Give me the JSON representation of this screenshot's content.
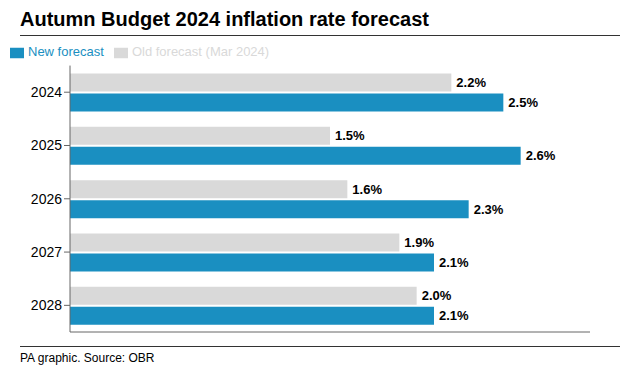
{
  "chart_data": {
    "type": "bar",
    "title": "Autumn Budget 2024 inflation rate forecast",
    "orientation": "horizontal",
    "categories": [
      "2024",
      "2025",
      "2026",
      "2027",
      "2028"
    ],
    "series": [
      {
        "name": "Old forecast (Mar 2024)",
        "color": "#d9d9d9",
        "values": [
          2.2,
          1.5,
          1.6,
          1.9,
          2.0
        ],
        "value_labels": [
          "2.2%",
          "1.5%",
          "1.6%",
          "1.9%",
          "2.0%"
        ]
      },
      {
        "name": "New forecast",
        "color": "#1a8fc1",
        "values": [
          2.5,
          2.6,
          2.3,
          2.1,
          2.1
        ],
        "value_labels": [
          "2.5%",
          "2.6%",
          "2.3%",
          "2.1%",
          "2.1%"
        ]
      }
    ],
    "xlim": [
      0,
      3.0
    ],
    "data_labels": true,
    "tick_labels": "y",
    "grid": false,
    "legend": "upper left",
    "annotations": [
      "PA graphic. Source: OBR"
    ]
  }
}
